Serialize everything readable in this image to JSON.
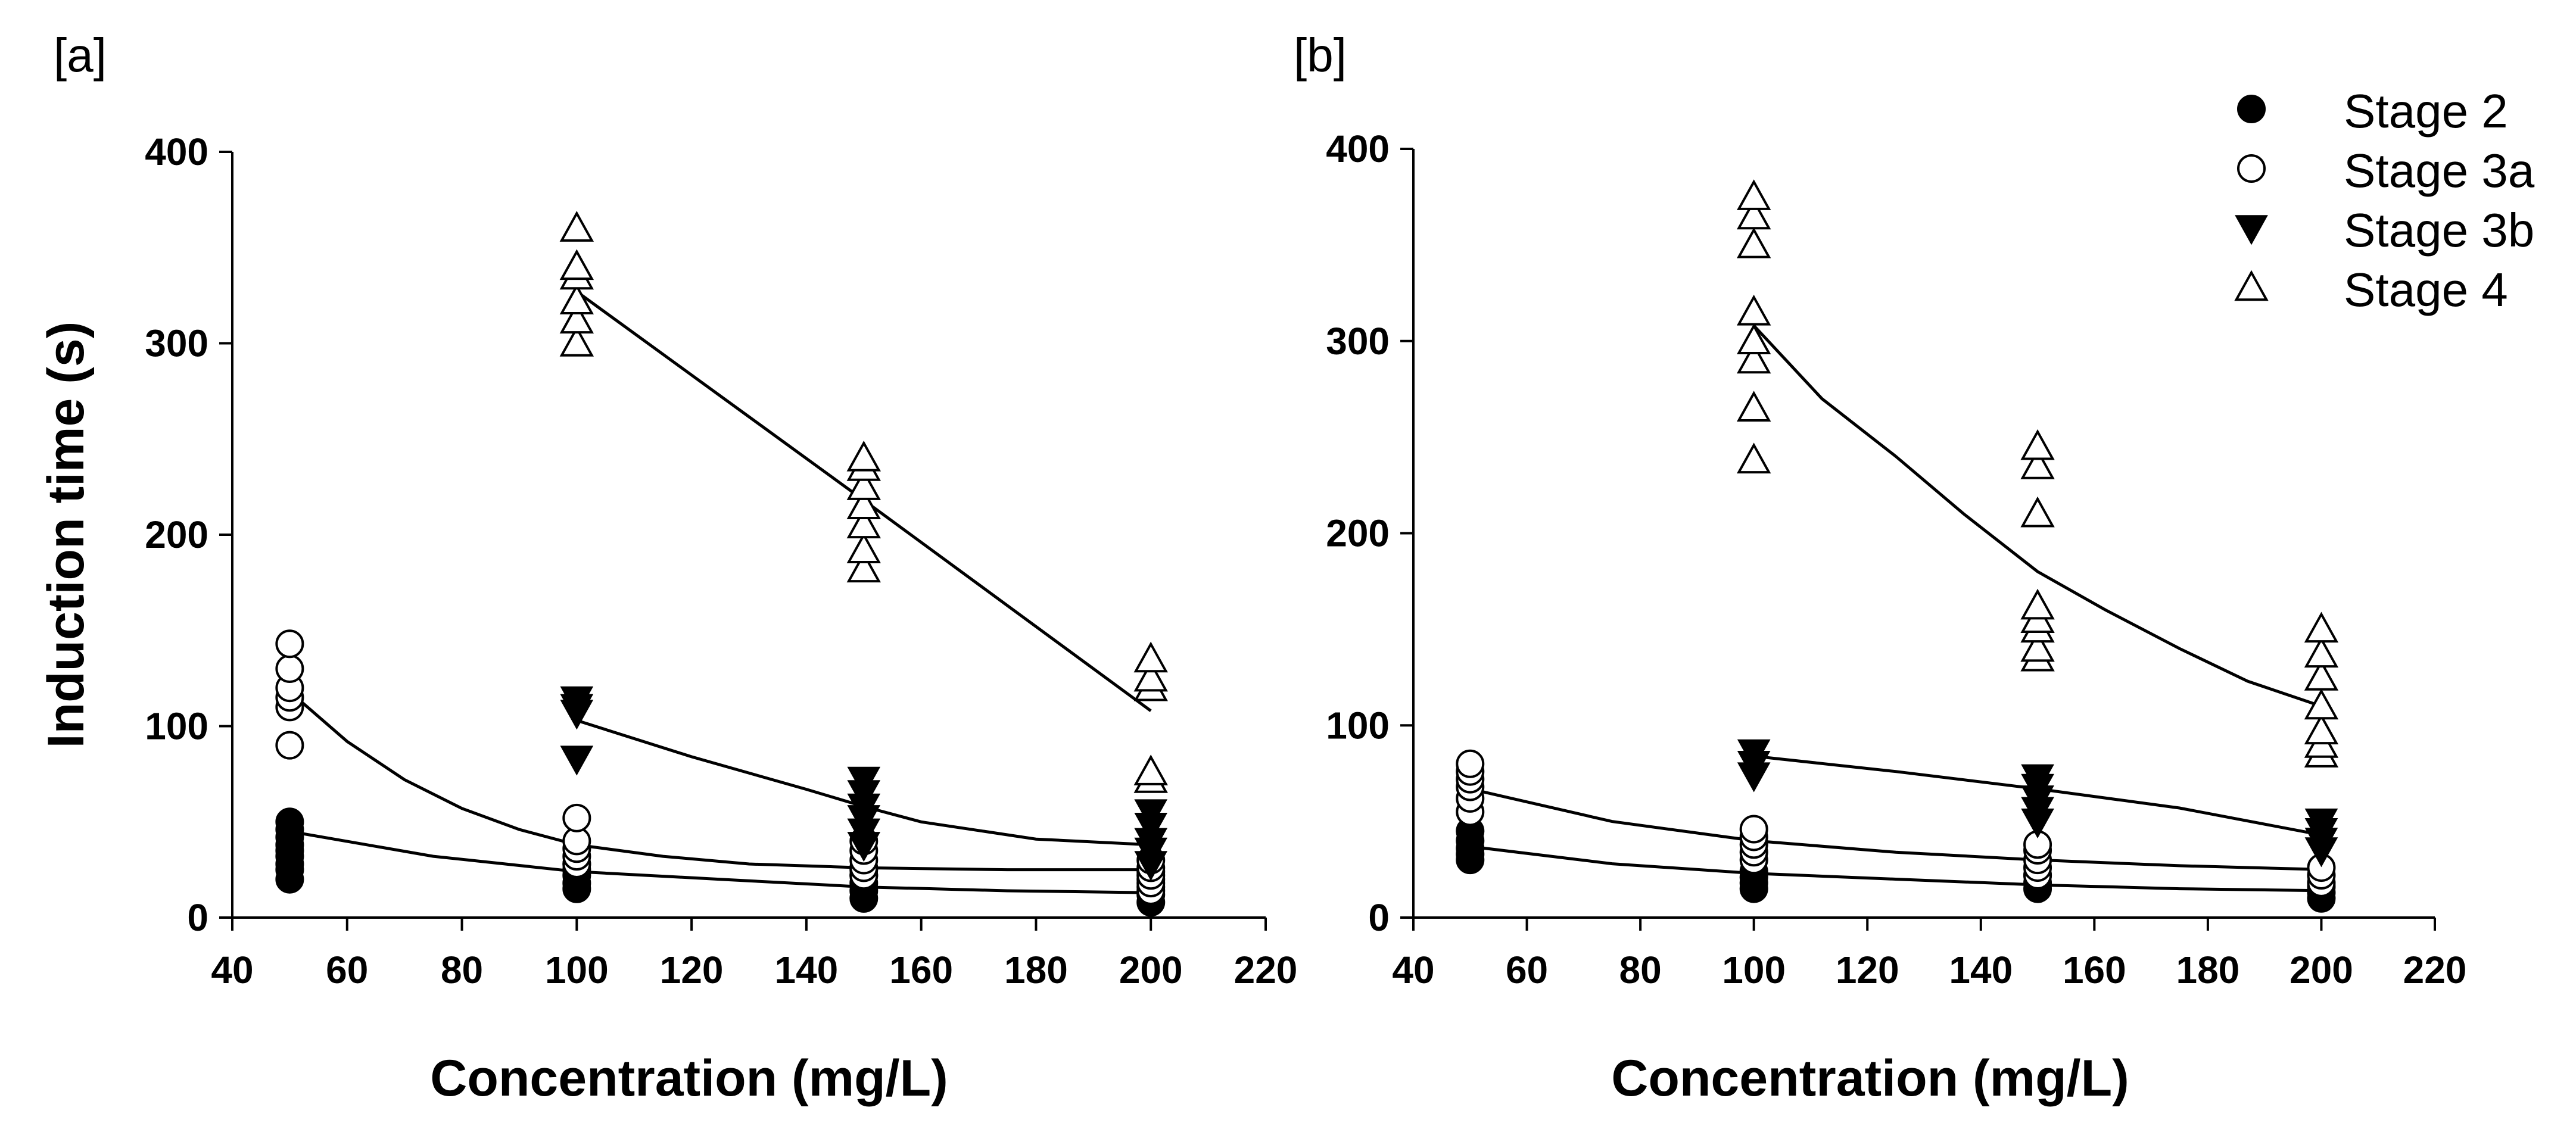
{
  "legend": [
    {
      "name": "Stage 2",
      "marker": "filled-circle"
    },
    {
      "name": "Stage 3a",
      "marker": "open-circle"
    },
    {
      "name": "Stage 3b",
      "marker": "filled-triangle-down"
    },
    {
      "name": "Stage 4",
      "marker": "open-triangle-up"
    }
  ],
  "chart_data": [
    {
      "panel_label": "[a]",
      "type": "scatter",
      "xlabel": "Concentration (mg/L)",
      "ylabel": "Induction time (s)",
      "xlim": [
        40,
        220
      ],
      "ylim": [
        0,
        400
      ],
      "xticks": [
        40,
        60,
        80,
        100,
        120,
        140,
        160,
        180,
        200,
        220
      ],
      "yticks": [
        0,
        100,
        200,
        300,
        400
      ],
      "series": [
        {
          "name": "Stage 2",
          "marker": "filled-circle",
          "points": [
            [
              50,
              20
            ],
            [
              50,
              25
            ],
            [
              50,
              28
            ],
            [
              50,
              32
            ],
            [
              50,
              35
            ],
            [
              50,
              38
            ],
            [
              50,
              42
            ],
            [
              50,
              46
            ],
            [
              50,
              50
            ],
            [
              100,
              15
            ],
            [
              100,
              18
            ],
            [
              100,
              22
            ],
            [
              100,
              25
            ],
            [
              100,
              28
            ],
            [
              150,
              10
            ],
            [
              150,
              14
            ],
            [
              150,
              18
            ],
            [
              150,
              22
            ],
            [
              150,
              25
            ],
            [
              200,
              8
            ],
            [
              200,
              12
            ],
            [
              200,
              16
            ],
            [
              200,
              20
            ],
            [
              200,
              24
            ]
          ]
        },
        {
          "name": "Stage 3a",
          "marker": "open-circle",
          "points": [
            [
              50,
              90
            ],
            [
              50,
              110
            ],
            [
              50,
              115
            ],
            [
              50,
              120
            ],
            [
              50,
              130
            ],
            [
              50,
              143
            ],
            [
              100,
              28
            ],
            [
              100,
              32
            ],
            [
              100,
              36
            ],
            [
              100,
              40
            ],
            [
              100,
              52
            ],
            [
              150,
              22
            ],
            [
              150,
              26
            ],
            [
              150,
              30
            ],
            [
              150,
              35
            ],
            [
              150,
              40
            ],
            [
              200,
              14
            ],
            [
              200,
              18
            ],
            [
              200,
              22
            ],
            [
              200,
              26
            ],
            [
              200,
              30
            ]
          ]
        },
        {
          "name": "Stage 3b",
          "marker": "filled-triangle-down",
          "points": [
            [
              100,
              83
            ],
            [
              100,
              107
            ],
            [
              100,
              110
            ],
            [
              100,
              114
            ],
            [
              150,
              38
            ],
            [
              150,
              45
            ],
            [
              150,
              52
            ],
            [
              150,
              58
            ],
            [
              150,
              65
            ],
            [
              150,
              72
            ],
            [
              200,
              28
            ],
            [
              200,
              35
            ],
            [
              200,
              40
            ],
            [
              200,
              48
            ],
            [
              200,
              55
            ]
          ]
        },
        {
          "name": "Stage 4",
          "marker": "open-triangle-up",
          "points": [
            [
              100,
              300
            ],
            [
              100,
              312
            ],
            [
              100,
              322
            ],
            [
              100,
              335
            ],
            [
              100,
              340
            ],
            [
              100,
              360
            ],
            [
              150,
              182
            ],
            [
              150,
              192
            ],
            [
              150,
              205
            ],
            [
              150,
              215
            ],
            [
              150,
              225
            ],
            [
              150,
              235
            ],
            [
              150,
              240
            ],
            [
              200,
              72
            ],
            [
              200,
              76
            ],
            [
              200,
              120
            ],
            [
              200,
              125
            ],
            [
              200,
              135
            ]
          ]
        }
      ],
      "fits": [
        {
          "name": "Stage 2",
          "points": [
            [
              50,
              45
            ],
            [
              75,
              32
            ],
            [
              100,
              24
            ],
            [
              125,
              20
            ],
            [
              150,
              16
            ],
            [
              175,
              14
            ],
            [
              200,
              13
            ]
          ]
        },
        {
          "name": "Stage 3a",
          "points": [
            [
              50,
              118
            ],
            [
              60,
              92
            ],
            [
              70,
              72
            ],
            [
              80,
              57
            ],
            [
              90,
              46
            ],
            [
              100,
              38
            ],
            [
              115,
              32
            ],
            [
              130,
              28
            ],
            [
              150,
              26
            ],
            [
              175,
              25
            ],
            [
              200,
              25
            ]
          ]
        },
        {
          "name": "Stage 3b",
          "points": [
            [
              100,
              103
            ],
            [
              120,
              84
            ],
            [
              140,
              67
            ],
            [
              150,
              58
            ],
            [
              160,
              50
            ],
            [
              180,
              41
            ],
            [
              200,
              38
            ]
          ]
        },
        {
          "name": "Stage 4",
          "points": [
            [
              100,
              327
            ],
            [
              150,
              218
            ],
            [
              200,
              108
            ]
          ]
        }
      ]
    },
    {
      "panel_label": "[b]",
      "type": "scatter",
      "xlabel": "Concentration (mg/L)",
      "ylabel": "Induction time (s)",
      "xlim": [
        40,
        220
      ],
      "ylim": [
        0,
        400
      ],
      "xticks": [
        40,
        60,
        80,
        100,
        120,
        140,
        160,
        180,
        200,
        220
      ],
      "yticks": [
        0,
        100,
        200,
        300,
        400
      ],
      "series": [
        {
          "name": "Stage 2",
          "marker": "filled-circle",
          "points": [
            [
              50,
              30
            ],
            [
              50,
              33
            ],
            [
              50,
              36
            ],
            [
              50,
              40
            ],
            [
              50,
              45
            ],
            [
              100,
              15
            ],
            [
              100,
              18
            ],
            [
              100,
              21
            ],
            [
              100,
              24
            ],
            [
              150,
              15
            ],
            [
              150,
              18
            ],
            [
              150,
              22
            ],
            [
              200,
              10
            ],
            [
              200,
              13
            ],
            [
              200,
              16
            ]
          ]
        },
        {
          "name": "Stage 3a",
          "marker": "open-circle",
          "points": [
            [
              50,
              55
            ],
            [
              50,
              62
            ],
            [
              50,
              68
            ],
            [
              50,
              72
            ],
            [
              50,
              76
            ],
            [
              50,
              80
            ],
            [
              100,
              30
            ],
            [
              100,
              34
            ],
            [
              100,
              38
            ],
            [
              100,
              42
            ],
            [
              100,
              46
            ],
            [
              150,
              22
            ],
            [
              150,
              26
            ],
            [
              150,
              30
            ],
            [
              150,
              35
            ],
            [
              150,
              38
            ],
            [
              200,
              18
            ],
            [
              200,
              22
            ],
            [
              200,
              26
            ]
          ]
        },
        {
          "name": "Stage 3b",
          "marker": "filled-triangle-down",
          "points": [
            [
              100,
              74
            ],
            [
              100,
              80
            ],
            [
              100,
              86
            ],
            [
              150,
              50
            ],
            [
              150,
              56
            ],
            [
              150,
              62
            ],
            [
              150,
              68
            ],
            [
              150,
              73
            ],
            [
              200,
              35
            ],
            [
              200,
              40
            ],
            [
              200,
              45
            ],
            [
              200,
              50
            ]
          ]
        },
        {
          "name": "Stage 4",
          "marker": "open-triangle-up",
          "points": [
            [
              100,
              238
            ],
            [
              100,
              265
            ],
            [
              100,
              290
            ],
            [
              100,
              300
            ],
            [
              100,
              315
            ],
            [
              100,
              350
            ],
            [
              100,
              365
            ],
            [
              100,
              375
            ],
            [
              150,
              135
            ],
            [
              150,
              140
            ],
            [
              150,
              150
            ],
            [
              150,
              155
            ],
            [
              150,
              162
            ],
            [
              150,
              210
            ],
            [
              150,
              235
            ],
            [
              150,
              245
            ],
            [
              200,
              85
            ],
            [
              200,
              90
            ],
            [
              200,
              97
            ],
            [
              200,
              110
            ],
            [
              200,
              125
            ],
            [
              200,
              137
            ],
            [
              200,
              150
            ]
          ]
        }
      ],
      "fits": [
        {
          "name": "Stage 2",
          "points": [
            [
              50,
              37
            ],
            [
              75,
              28
            ],
            [
              100,
              23
            ],
            [
              125,
              20
            ],
            [
              150,
              17
            ],
            [
              175,
              15
            ],
            [
              200,
              14
            ]
          ]
        },
        {
          "name": "Stage 3a",
          "points": [
            [
              50,
              67
            ],
            [
              75,
              50
            ],
            [
              100,
              40
            ],
            [
              125,
              34
            ],
            [
              150,
              30
            ],
            [
              175,
              27
            ],
            [
              200,
              25
            ]
          ]
        },
        {
          "name": "Stage 3b",
          "points": [
            [
              100,
              84
            ],
            [
              125,
              76
            ],
            [
              150,
              67
            ],
            [
              175,
              57
            ],
            [
              200,
              43
            ]
          ]
        },
        {
          "name": "Stage 4",
          "points": [
            [
              100,
              308
            ],
            [
              112,
              270
            ],
            [
              125,
              240
            ],
            [
              137,
              210
            ],
            [
              150,
              180
            ],
            [
              162,
              160
            ],
            [
              175,
              140
            ],
            [
              187,
              123
            ],
            [
              200,
              110
            ]
          ]
        }
      ]
    }
  ]
}
